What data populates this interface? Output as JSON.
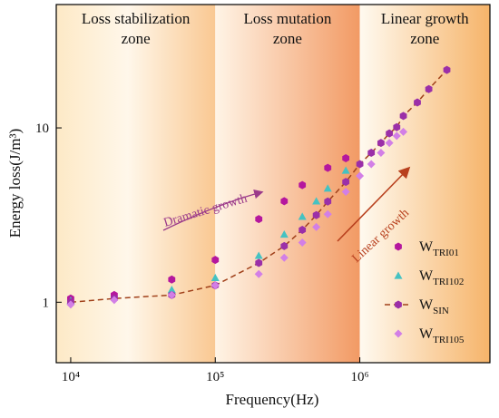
{
  "chart_data": {
    "type": "scatter",
    "x_label": "Frequency(Hz)",
    "y_label": "Energy loss(J/m³)",
    "log_x": true,
    "log_y": true,
    "xlim": [
      7943,
      7943282
    ],
    "ylim": [
      0.45,
      51
    ],
    "xticks": [
      {
        "value": 10000,
        "label": "10⁴"
      },
      {
        "value": 100000,
        "label": "10⁵"
      },
      {
        "value": 1000000,
        "label": "10⁶"
      }
    ],
    "yticks": [
      1,
      10
    ],
    "legend": "lower right",
    "zones": [
      {
        "label": [
          "Loss stabilization",
          "zone"
        ],
        "to": 100000
      },
      {
        "label": [
          "Loss mutation",
          "zone"
        ],
        "from": 100000,
        "to": 1000000
      },
      {
        "label": [
          "Linear growth",
          "zone"
        ],
        "from": 1000000
      }
    ],
    "annotations": [
      "Dramatic growth",
      "Linear growth"
    ],
    "series": [
      {
        "name": "WTRI01",
        "color": "#b5179e",
        "marker": "hexagon",
        "x": [
          10000,
          20000,
          50000,
          100000,
          200000,
          300000,
          400000,
          600000,
          800000
        ],
        "y": [
          1.05,
          1.1,
          1.35,
          1.75,
          3.0,
          3.8,
          4.7,
          5.9,
          6.7
        ]
      },
      {
        "name": "WTRI102",
        "color": "#45c2c2",
        "marker": "triangle",
        "x": [
          10000,
          50000,
          100000,
          200000,
          300000,
          400000,
          500000,
          600000,
          800000
        ],
        "y": [
          1.02,
          1.18,
          1.38,
          1.85,
          2.45,
          3.1,
          3.8,
          4.5,
          5.7
        ]
      },
      {
        "name": "WSIN",
        "color": "#9b2fa8",
        "line_color": "#a0401a",
        "marker": "hexagon",
        "line": true,
        "x": [
          10000,
          20000,
          50000,
          100000,
          200000,
          300000,
          400000,
          500000,
          600000,
          800000,
          1000000,
          1200000,
          1400000,
          1600000,
          1800000,
          2000000,
          2500000,
          3000000,
          4000000
        ],
        "y": [
          1.0,
          1.05,
          1.1,
          1.25,
          1.68,
          2.1,
          2.6,
          3.16,
          3.78,
          4.9,
          6.2,
          7.2,
          8.2,
          9.3,
          10.1,
          11.7,
          14,
          16.7,
          21.5
        ]
      },
      {
        "name": "WTRI105",
        "color": "#d27fe6",
        "marker": "diamond",
        "x": [
          10000,
          20000,
          50000,
          100000,
          200000,
          300000,
          400000,
          500000,
          600000,
          800000,
          1000000,
          1200000,
          1400000,
          1600000,
          1800000,
          2000000
        ],
        "y": [
          0.97,
          1.03,
          1.1,
          1.25,
          1.45,
          1.8,
          2.2,
          2.7,
          3.2,
          4.3,
          5.3,
          6.2,
          7.2,
          8.2,
          9.0,
          9.5
        ]
      }
    ]
  }
}
